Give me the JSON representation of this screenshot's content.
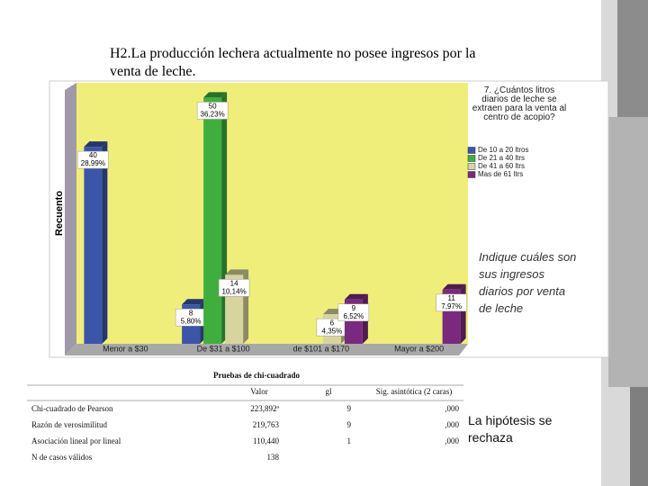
{
  "header": {
    "title": "H2.La producción lechera actualmente no posee ingresos por la venta de leche."
  },
  "chart_data": {
    "type": "bar",
    "legend_title": "7. ¿Cuántos litros diarios de leche se extraen para la venta al centro de acopio?",
    "y_label": "Recuento",
    "categories": [
      "Menor a $30",
      "De $31 a $100",
      "de $101 a $170",
      "Mayor a $200"
    ],
    "series": [
      {
        "name": "De 10 a 20 ltros",
        "color": "#3b55a8",
        "values": [
          40,
          8,
          null,
          null
        ],
        "percent_labels": [
          "28,99%",
          "5,80%",
          null,
          null
        ]
      },
      {
        "name": "De 21 a 40 ltrs",
        "color": "#3fae3f",
        "values": [
          null,
          50,
          null,
          null
        ],
        "percent_labels": [
          null,
          "36,23%",
          null,
          null
        ]
      },
      {
        "name": "De 41 a 60 ltrs",
        "color": "#d8d4a0",
        "values": [
          null,
          14,
          6,
          null
        ],
        "percent_labels": [
          null,
          "10,14%",
          "4,35%",
          null
        ]
      },
      {
        "name": "Mas de 61 ltrs",
        "color": "#7a2a7e",
        "values": [
          null,
          null,
          9,
          11
        ],
        "percent_labels": [
          null,
          null,
          "6,52%",
          "7,97%"
        ]
      }
    ],
    "ylim": [
      0,
      53
    ]
  },
  "side_note": "Indique cuáles son sus ingresos diarios por venta de leche",
  "table": {
    "title": "Pruebas de chi-cuadrado",
    "headers": [
      "Valor",
      "gl",
      "Sig. asintótica (2 caras)"
    ],
    "rows": [
      [
        "Chi-cuadrado de Pearson",
        "223,892ª",
        "9",
        ",000"
      ],
      [
        "Razón de verosimilitud",
        "219,763",
        "9",
        ",000"
      ],
      [
        "Asociación lineal por lineal",
        "110,440",
        "1",
        ",000"
      ],
      [
        "N de casos válidos",
        "138"
      ]
    ]
  },
  "conclusion": "La hipótesis se rechaza"
}
